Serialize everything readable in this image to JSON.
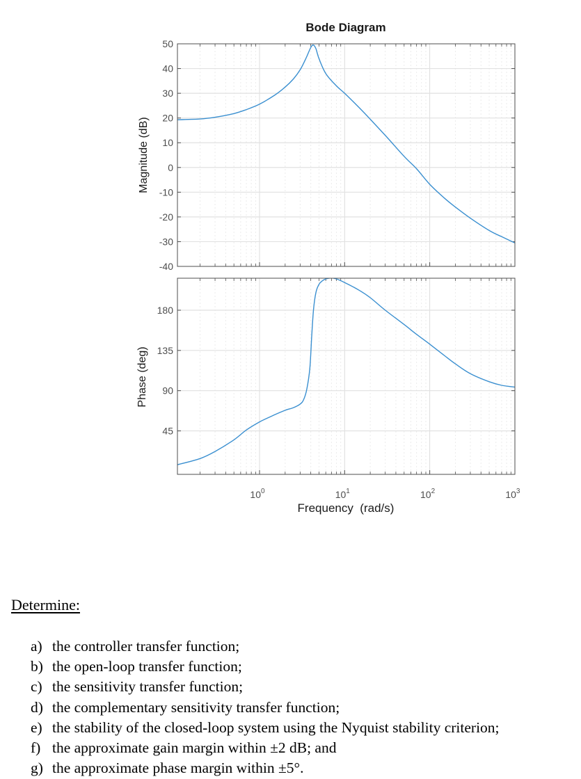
{
  "chart_data": [
    {
      "type": "line",
      "panel": "magnitude",
      "title": "Bode Diagram",
      "xlabel": "Frequency  (rad/s)",
      "ylabel": "Magnitude (dB)",
      "xscale": "log",
      "xlim": [
        0.107,
        1000
      ],
      "ylim": [
        -40,
        50
      ],
      "yticks": [
        50,
        40,
        30,
        20,
        10,
        0,
        -10,
        -20,
        -30,
        -40
      ],
      "grid": true,
      "series": [
        {
          "name": "magnitude",
          "color": "#3a8fd0",
          "x": [
            0.107,
            0.2,
            0.3,
            0.5,
            0.7,
            1.0,
            1.5,
            2.0,
            2.5,
            3.0,
            3.5,
            4.0,
            4.3,
            4.6,
            5.0,
            6.0,
            8.0,
            10,
            15,
            20,
            30,
            50,
            70,
            100,
            150,
            200,
            300,
            500,
            700,
            1000
          ],
          "y": [
            19.3,
            19.6,
            20.3,
            21.8,
            23.4,
            25.6,
            29.2,
            32.5,
            35.8,
            39.5,
            44.0,
            48.5,
            49.5,
            48.0,
            44.0,
            38.0,
            33.0,
            30.0,
            24.0,
            19.5,
            13.0,
            4.5,
            -0.5,
            -6.8,
            -12.5,
            -16.0,
            -20.5,
            -25.5,
            -28.0,
            -30.5
          ]
        }
      ]
    },
    {
      "type": "line",
      "panel": "phase",
      "xlabel": "Frequency  (rad/s)",
      "ylabel": "Phase (deg)",
      "xscale": "log",
      "xlim": [
        0.107,
        1000
      ],
      "ylim": [
        -3,
        217
      ],
      "xticks": [
        "10^0",
        "10^1",
        "10^2",
        "10^3"
      ],
      "yticks": [
        180,
        135,
        90,
        45
      ],
      "grid": true,
      "series": [
        {
          "name": "phase",
          "color": "#3a8fd0",
          "x": [
            0.107,
            0.2,
            0.3,
            0.5,
            0.7,
            1.0,
            1.5,
            2.0,
            2.5,
            3.0,
            3.3,
            3.6,
            3.9,
            4.1,
            4.3,
            4.6,
            5.0,
            5.5,
            6.0,
            7.0,
            8.0,
            10,
            15,
            20,
            30,
            50,
            70,
            100,
            150,
            200,
            300,
            500,
            700,
            1000
          ],
          "y": [
            7,
            14,
            22,
            35,
            46,
            55,
            63,
            68,
            71,
            75,
            80,
            92,
            115,
            150,
            180,
            200,
            209,
            213,
            215,
            216,
            215,
            211,
            202,
            194,
            180,
            164,
            153,
            142,
            129,
            120,
            109,
            100,
            96,
            94
          ]
        }
      ]
    }
  ],
  "figure": {
    "title": "Bode Diagram",
    "magnitude_ylabel": "Magnitude (dB)",
    "phase_ylabel": "Phase (deg)",
    "xlabel": "Frequency  (rad/s)",
    "xtick_labels": [
      {
        "base": "10",
        "exp": "0",
        "value": 1
      },
      {
        "base": "10",
        "exp": "1",
        "value": 10
      },
      {
        "base": "10",
        "exp": "2",
        "value": 100
      },
      {
        "base": "10",
        "exp": "3",
        "value": 1000
      }
    ],
    "line_color": "#3a8fd0",
    "axis_color": "#4d4d4d",
    "tick_label_color": "#4d4d4d",
    "grid_color": "#e1e1e1"
  },
  "question": {
    "prompt": "Determine:",
    "items": [
      {
        "mark": "a)",
        "text": "the controller transfer function;"
      },
      {
        "mark": "b)",
        "text": "the open-loop transfer function;"
      },
      {
        "mark": "c)",
        "text": "the sensitivity transfer function;"
      },
      {
        "mark": "d)",
        "text": "the complementary sensitivity transfer function;"
      },
      {
        "mark": "e)",
        "text": "the stability of the closed-loop system using the Nyquist stability criterion;"
      },
      {
        "mark": "f)",
        "text": "the approximate gain margin within ±2 dB; and"
      },
      {
        "mark": "g)",
        "text": "the approximate phase margin within ±5°."
      }
    ]
  }
}
